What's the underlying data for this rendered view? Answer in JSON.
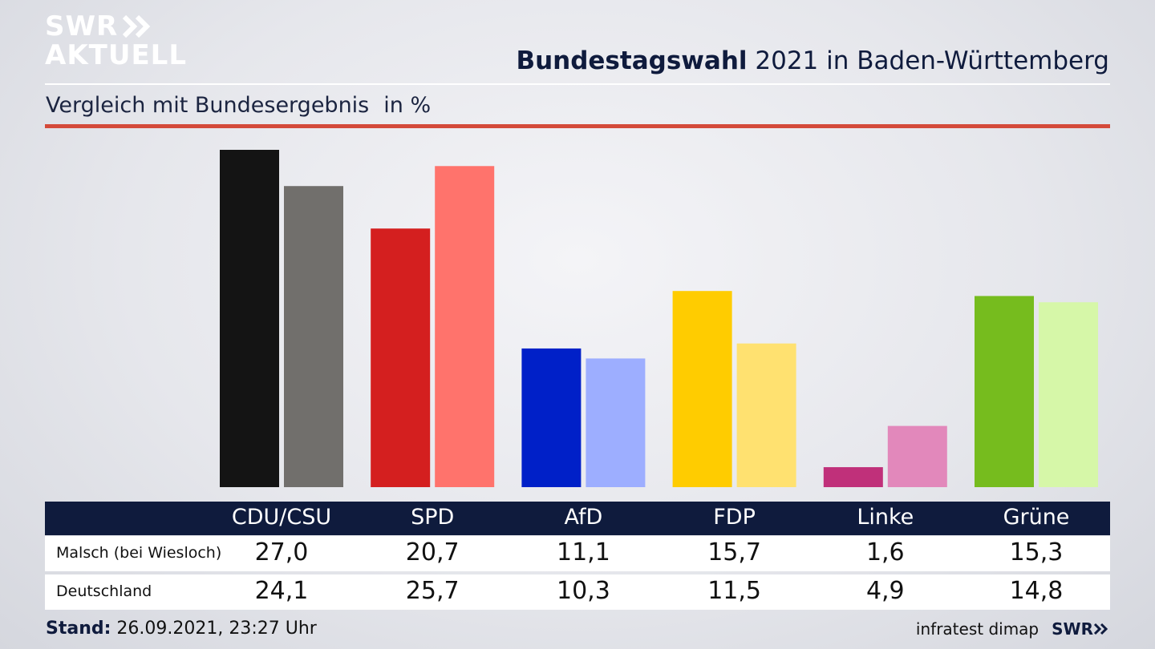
{
  "brand": {
    "line1": "SWR",
    "line2": "AKTUELL",
    "footer_logo": "SWR"
  },
  "header": {
    "title_bold": "Bundestagswahl",
    "title_rest": "2021 in Baden-Württemberg"
  },
  "subheader": {
    "label": "Vergleich mit Bundesergebnis",
    "unit": "in %"
  },
  "footer": {
    "stand_label": "Stand:",
    "stand_value": "26.09.2021, 23:27 Uhr",
    "source": "infratest dimap"
  },
  "chart_data": {
    "type": "bar",
    "title": "Bundestagswahl 2021 in Baden-Württemberg",
    "subtitle": "Vergleich mit Bundesergebnis in %",
    "categories": [
      "CDU/CSU",
      "SPD",
      "AfD",
      "FDP",
      "Linke",
      "Grüne"
    ],
    "series": [
      {
        "name": "Malsch (bei Wiesloch)",
        "values": [
          27.0,
          20.7,
          11.1,
          15.7,
          1.6,
          15.3
        ],
        "labels": [
          "27,0",
          "20,7",
          "11,1",
          "15,7",
          "1,6",
          "15,3"
        ]
      },
      {
        "name": "Deutschland",
        "values": [
          24.1,
          25.7,
          10.3,
          11.5,
          4.9,
          14.8
        ],
        "labels": [
          "24,1",
          "25,7",
          "10,3",
          "11,5",
          "4,9",
          "14,8"
        ]
      }
    ],
    "colors": {
      "primary": [
        "#141414",
        "#d41f1f",
        "#0020c8",
        "#ffcc00",
        "#c0307a",
        "#76bc1e"
      ],
      "secondary": [
        "#716f6c",
        "#ff736c",
        "#9daeff",
        "#ffe170",
        "#e288bb",
        "#d6f7a8"
      ]
    },
    "ylim": [
      0,
      27.0
    ],
    "grid": false,
    "legend": "table-below"
  }
}
